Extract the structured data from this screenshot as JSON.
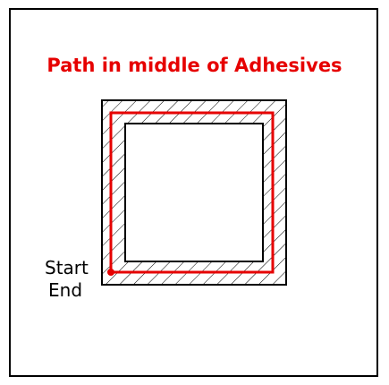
{
  "title": "Path in middle of Adhesives",
  "labels": {
    "start": "Start",
    "end": "End"
  },
  "colors": {
    "title": "#e60000",
    "path": "#e60000",
    "outline": "#000000",
    "hatch": "#000000",
    "background": "#ffffff"
  }
}
